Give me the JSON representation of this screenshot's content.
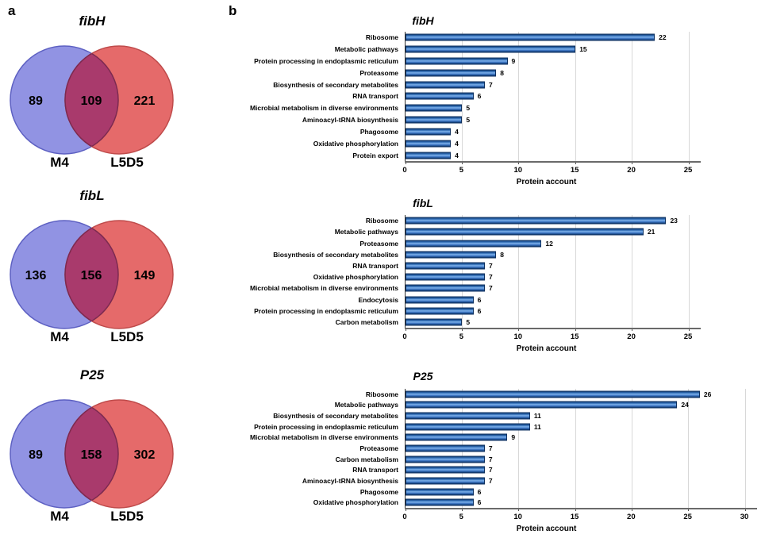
{
  "panel_labels": {
    "a": "a",
    "b": "b"
  },
  "colors": {
    "venn_left_fill": "#9193e3",
    "venn_left_stroke": "#5d60c2",
    "venn_right_fill": "#e56a6a",
    "venn_right_stroke": "#bf4b4b",
    "venn_overlap_fill": "#a93a6c",
    "venn_overlap_stroke": "#7c2a50",
    "bar_fill": "#3b76c4",
    "bar_border": "#12386e",
    "axis": "#6a6a6a",
    "gridline": "#d8d8d8"
  },
  "chart_data": [
    {
      "type": "venn",
      "title": "fibH",
      "sets": [
        {
          "label": "M4",
          "unique": 89
        },
        {
          "label": "L5D5",
          "unique": 221
        }
      ],
      "overlap": 109
    },
    {
      "type": "venn",
      "title": "fibL",
      "sets": [
        {
          "label": "M4",
          "unique": 136
        },
        {
          "label": "L5D5",
          "unique": 149
        }
      ],
      "overlap": 156
    },
    {
      "type": "venn",
      "title": "P25",
      "sets": [
        {
          "label": "M4",
          "unique": 89
        },
        {
          "label": "L5D5",
          "unique": 302
        }
      ],
      "overlap": 158
    },
    {
      "type": "bar",
      "orientation": "horizontal",
      "title": "fibH",
      "xlabel": "Protein account",
      "xlim": [
        0,
        25
      ],
      "xticks": [
        0,
        5,
        10,
        15,
        20,
        25
      ],
      "grid": true,
      "categories": [
        "Ribosome",
        "Metabolic pathways",
        "Protein processing in endoplasmic reticulum",
        "Proteasome",
        "Biosynthesis of secondary metabolites",
        "RNA transport",
        "Microbial metabolism in diverse environments",
        "Aminoacyl-tRNA biosynthesis",
        "Phagosome",
        "Oxidative phosphorylation",
        "Protein export"
      ],
      "values": [
        22,
        15,
        9,
        8,
        7,
        6,
        5,
        5,
        4,
        4,
        4
      ]
    },
    {
      "type": "bar",
      "orientation": "horizontal",
      "title": "fibL",
      "xlabel": "Protein account",
      "xlim": [
        0,
        25
      ],
      "xticks": [
        0,
        5,
        10,
        15,
        20,
        25
      ],
      "grid": true,
      "categories": [
        "Ribosome",
        "Metabolic pathways",
        "Proteasome",
        "Biosynthesis of secondary metabolites",
        "RNA transport",
        "Oxidative phosphorylation",
        "Microbial metabolism in diverse environments",
        "Endocytosis",
        "Protein processing in endoplasmic reticulum",
        "Carbon metabolism"
      ],
      "values": [
        23,
        21,
        12,
        8,
        7,
        7,
        7,
        6,
        6,
        5
      ]
    },
    {
      "type": "bar",
      "orientation": "horizontal",
      "title": "P25",
      "xlabel": "Protein account",
      "xlim": [
        0,
        30
      ],
      "xticks": [
        0,
        5,
        10,
        15,
        20,
        25,
        30
      ],
      "grid": true,
      "categories": [
        "Ribosome",
        "Metabolic pathways",
        "Biosynthesis of secondary metabolites",
        "Protein processing in endoplasmic reticulum",
        "Microbial metabolism in diverse environments",
        "Proteasome",
        "Carbon metabolism",
        "RNA transport",
        "Aminoacyl-tRNA biosynthesis",
        "Phagosome",
        "Oxidative phosphorylation"
      ],
      "values": [
        26,
        24,
        11,
        11,
        9,
        7,
        7,
        7,
        7,
        6,
        6
      ]
    }
  ]
}
